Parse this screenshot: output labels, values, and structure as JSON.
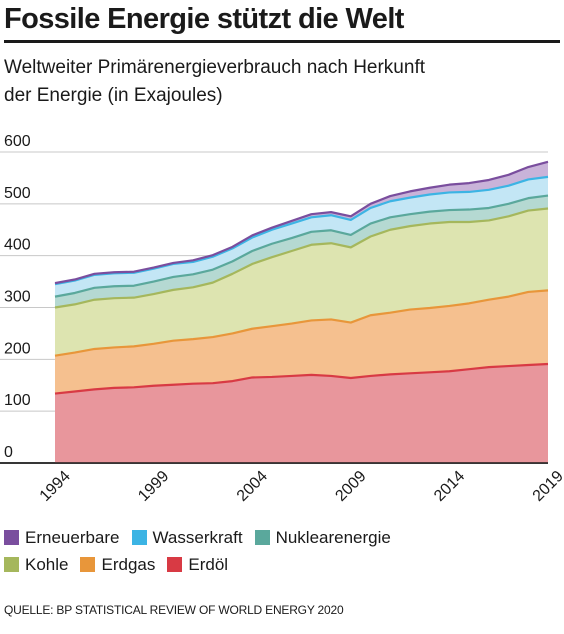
{
  "header": {
    "title": "Fossile Energie stützt die Welt",
    "subtitle_line1": "Weltweiter Primärenergieverbrauch nach Herkunft",
    "subtitle_line2": "der Energie (in Exajoules)"
  },
  "footer": {
    "source": "QUELLE: BP STATISTICAL REVIEW OF WORLD ENERGY 2020"
  },
  "chart_data": {
    "type": "area",
    "stacked": true,
    "x": [
      1994,
      1995,
      1996,
      1997,
      1998,
      1999,
      2000,
      2001,
      2002,
      2003,
      2004,
      2005,
      2006,
      2007,
      2008,
      2009,
      2010,
      2011,
      2012,
      2013,
      2014,
      2015,
      2016,
      2017,
      2018,
      2019
    ],
    "x_tick_labels": [
      "1994",
      "1999",
      "2004",
      "2009",
      "2014",
      "2019"
    ],
    "y_tick_labels": [
      "0",
      "100",
      "200",
      "300",
      "400",
      "500",
      "600"
    ],
    "ylim": [
      0,
      600
    ],
    "grid": true,
    "legend_position": "bottom",
    "series": [
      {
        "name": "Erdöl",
        "color": "#e8969c",
        "line_color": "#d83a44",
        "values": [
          134,
          138,
          142,
          145,
          146,
          149,
          151,
          153,
          154,
          158,
          165,
          166,
          168,
          170,
          168,
          164,
          168,
          171,
          173,
          175,
          177,
          181,
          185,
          187,
          189,
          191
        ]
      },
      {
        "name": "Erdgas",
        "color": "#f5c08f",
        "line_color": "#e8963a",
        "values": [
          73,
          75,
          78,
          78,
          79,
          81,
          85,
          86,
          89,
          92,
          94,
          98,
          101,
          105,
          109,
          107,
          117,
          119,
          123,
          124,
          126,
          127,
          130,
          134,
          141,
          142
        ]
      },
      {
        "name": "Kohle",
        "color": "#dde4b0",
        "line_color": "#a5b75c",
        "values": [
          93,
          93,
          95,
          95,
          94,
          96,
          98,
          100,
          105,
          115,
          125,
          133,
          140,
          146,
          147,
          145,
          152,
          160,
          161,
          163,
          162,
          157,
          153,
          155,
          157,
          158
        ]
      },
      {
        "name": "Nuklearenergie",
        "color": "#b5d9d2",
        "line_color": "#5aa89c",
        "values": [
          21,
          22,
          23,
          23,
          23,
          24,
          25,
          25,
          25,
          24,
          25,
          26,
          25,
          25,
          25,
          24,
          25,
          24,
          23,
          23,
          23,
          24,
          24,
          24,
          24,
          25
        ]
      },
      {
        "name": "Wasserkraft",
        "color": "#c3e6f5",
        "line_color": "#3cb4e4",
        "values": [
          24,
          24,
          25,
          25,
          25,
          25,
          25,
          24,
          25,
          25,
          26,
          27,
          28,
          28,
          29,
          29,
          30,
          31,
          32,
          33,
          34,
          34,
          35,
          35,
          36,
          36
        ]
      },
      {
        "name": "Erneuerbare",
        "color": "#c9b3d9",
        "line_color": "#7a4e9e",
        "values": [
          2,
          2,
          2,
          2,
          2,
          2,
          2,
          3,
          3,
          3,
          4,
          4,
          5,
          6,
          6,
          7,
          8,
          10,
          12,
          13,
          15,
          17,
          19,
          21,
          24,
          29
        ]
      }
    ],
    "legend_rows": [
      [
        "Erneuerbare",
        "Wasserkraft",
        "Nuklearenergie"
      ],
      [
        "Kohle",
        "Erdgas",
        "Erdöl"
      ]
    ]
  }
}
